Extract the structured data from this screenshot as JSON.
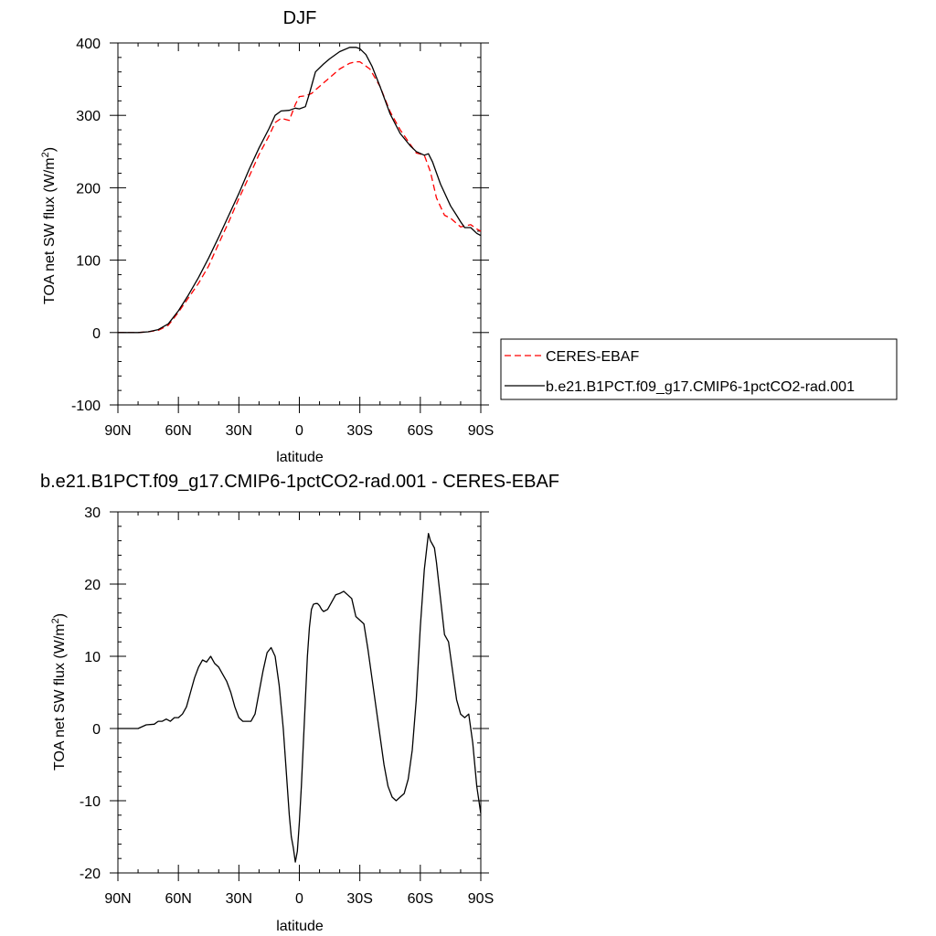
{
  "chart_data": [
    {
      "type": "line",
      "title": "DJF",
      "xlabel": "latitude",
      "ylabel": "TOA net SW flux (W/m",
      "ylabel_sup": "2",
      "ylabel_tail": ")",
      "xlim": [
        90,
        -90
      ],
      "ylim": [
        -100,
        400
      ],
      "xticks": [
        90,
        60,
        30,
        0,
        -30,
        -60,
        -90
      ],
      "xtick_labels": [
        "90N",
        "60N",
        "30N",
        "0",
        "30S",
        "60S",
        "90S"
      ],
      "yticks": [
        -100,
        0,
        100,
        200,
        300,
        400
      ],
      "ytick_labels": [
        "-100",
        "0",
        "100",
        "200",
        "300",
        "400"
      ],
      "legend_position": "right",
      "series": [
        {
          "name": "CERES-EBAF",
          "color": "#ff0000",
          "dash": "dashed",
          "x": [
            90,
            80,
            75,
            70,
            65,
            60,
            55,
            50,
            45,
            40,
            35,
            30,
            25,
            20,
            15,
            12,
            9,
            5,
            2,
            0,
            -3,
            -6,
            -10,
            -15,
            -20,
            -25,
            -28,
            -30,
            -35,
            -40,
            -45,
            -50,
            -55,
            -58,
            -62,
            -65,
            -68,
            -72,
            -75,
            -80,
            -85,
            -88,
            -90
          ],
          "y": [
            0,
            0,
            1,
            3,
            10,
            28,
            48,
            68,
            92,
            123,
            153,
            185,
            215,
            246,
            272,
            290,
            296,
            293,
            315,
            326,
            327,
            330,
            340,
            352,
            364,
            372,
            374,
            374,
            364,
            340,
            305,
            280,
            260,
            248,
            245,
            222,
            186,
            162,
            158,
            146,
            149,
            143,
            140
          ]
        },
        {
          "name": "b.e21.B1PCT.f09_g17.CMIP6-1pctCO2-rad.001",
          "color": "#000000",
          "dash": "solid",
          "x": [
            90,
            80,
            75,
            70,
            65,
            60,
            55,
            50,
            45,
            40,
            35,
            30,
            25,
            20,
            15,
            12,
            9,
            5,
            2,
            0,
            -3,
            -5,
            -8,
            -12,
            -15,
            -20,
            -25,
            -28,
            -30,
            -33,
            -36,
            -40,
            -45,
            -50,
            -55,
            -58,
            -62,
            -64,
            -66,
            -70,
            -75,
            -78,
            -80,
            -82,
            -85,
            -88,
            -90
          ],
          "y": [
            0,
            0,
            1,
            4,
            12,
            30,
            52,
            76,
            103,
            132,
            162,
            192,
            225,
            255,
            282,
            300,
            306,
            307,
            310,
            309,
            312,
            330,
            360,
            371,
            378,
            388,
            394,
            394,
            392,
            384,
            368,
            340,
            302,
            275,
            258,
            250,
            245,
            247,
            236,
            205,
            175,
            162,
            153,
            145,
            145,
            137,
            134
          ]
        }
      ]
    },
    {
      "type": "line",
      "title": "b.e21.B1PCT.f09_g17.CMIP6-1pctCO2-rad.001 - CERES-EBAF",
      "xlabel": "latitude",
      "ylabel": "TOA net SW flux (W/m",
      "ylabel_sup": "2",
      "ylabel_tail": ")",
      "xlim": [
        90,
        -90
      ],
      "ylim": [
        -20,
        30
      ],
      "xticks": [
        90,
        60,
        30,
        0,
        -30,
        -60,
        -90
      ],
      "xtick_labels": [
        "90N",
        "60N",
        "30N",
        "0",
        "30S",
        "60S",
        "90S"
      ],
      "yticks": [
        -20,
        -10,
        0,
        10,
        20,
        30
      ],
      "ytick_labels": [
        "-20",
        "-10",
        "0",
        "10",
        "20",
        "30"
      ],
      "series": [
        {
          "color": "#000000",
          "dash": "solid",
          "x": [
            90,
            80,
            76,
            72,
            70,
            68,
            66,
            64,
            62,
            60,
            58,
            56,
            54,
            52,
            50,
            48,
            46,
            44,
            42,
            40,
            38,
            36,
            34,
            32,
            30,
            28,
            26,
            24,
            22,
            20,
            18,
            16,
            14,
            12,
            10,
            8,
            7,
            6,
            5,
            4,
            3,
            2,
            1,
            0,
            -1,
            -2,
            -3,
            -4,
            -5,
            -6,
            -7,
            -8,
            -9,
            -10,
            -11,
            -12,
            -14,
            -16,
            -18,
            -20,
            -22,
            -24,
            -26,
            -28,
            -30,
            -32,
            -34,
            -36,
            -38,
            -40,
            -42,
            -44,
            -46,
            -48,
            -50,
            -52,
            -54,
            -56,
            -58,
            -60,
            -62,
            -64,
            -65,
            -66,
            -67,
            -68,
            -70,
            -72,
            -74,
            -76,
            -78,
            -80,
            -82,
            -84,
            -86,
            -88,
            -90
          ],
          "y": [
            0,
            0,
            0.5,
            0.6,
            1.0,
            1.0,
            1.3,
            1.0,
            1.5,
            1.5,
            2.0,
            3.0,
            5.0,
            7.0,
            8.5,
            9.5,
            9.2,
            10.0,
            9.0,
            8.5,
            7.5,
            6.5,
            5.0,
            3.0,
            1.5,
            1.0,
            1.0,
            1.0,
            2.0,
            5.0,
            8.0,
            10.5,
            11.2,
            10.0,
            6.0,
            0.0,
            -4.0,
            -8.0,
            -12.0,
            -15.0,
            -16.5,
            -18.5,
            -17.0,
            -13.0,
            -8.0,
            -2.0,
            4.0,
            10.0,
            14.0,
            16.5,
            17.2,
            17.3,
            17.3,
            17.0,
            16.5,
            16.2,
            16.5,
            17.5,
            18.5,
            18.7,
            19.0,
            18.5,
            18.0,
            15.5,
            15.0,
            14.5,
            11.0,
            7.0,
            3.0,
            -1.0,
            -5.0,
            -8.0,
            -9.5,
            -10.0,
            -9.5,
            -9.0,
            -7.0,
            -3.0,
            4.0,
            14.0,
            22.0,
            27.0,
            26.0,
            25.5,
            25.0,
            23.0,
            18.0,
            13.0,
            12.0,
            8.0,
            4.0,
            2.0,
            1.5,
            2.0,
            -2.0,
            -8.0,
            -11.8
          ]
        }
      ]
    }
  ]
}
